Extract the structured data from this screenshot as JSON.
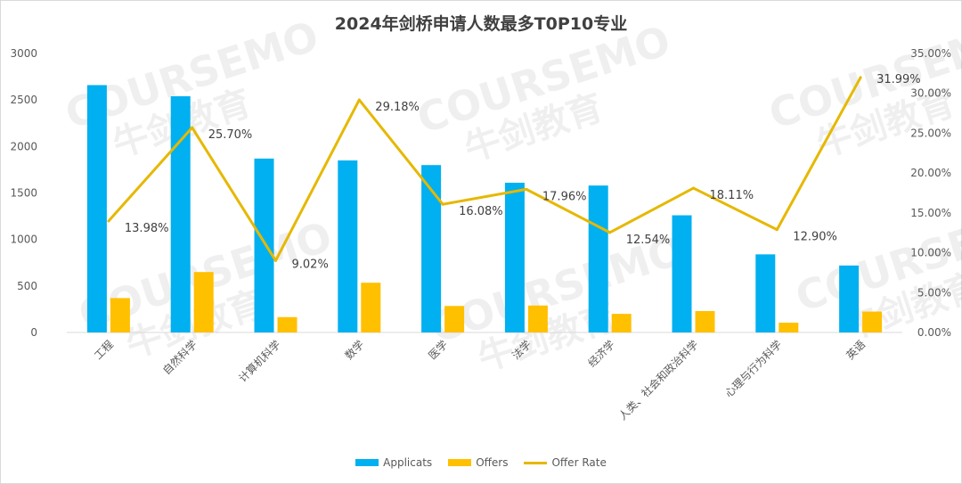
{
  "chart_data": {
    "type": "bar",
    "title": "2024年剑桥申请人数最多T0P10专业",
    "categories": [
      "工程",
      "自然科学",
      "计算机科学",
      "数学",
      "医学",
      "法学",
      "经济学",
      "人类、社会和政治科学",
      "心理与行为科学",
      "英语"
    ],
    "series": [
      {
        "name": "Applicats",
        "type": "bar",
        "axis": "left",
        "color": "#00B0F0",
        "values": [
          2660,
          2540,
          1870,
          1850,
          1800,
          1610,
          1580,
          1260,
          840,
          720
        ]
      },
      {
        "name": "Offers",
        "type": "bar",
        "axis": "left",
        "color": "#FFC000",
        "values": [
          370,
          650,
          165,
          535,
          285,
          290,
          200,
          230,
          105,
          225
        ]
      },
      {
        "name": "Offer Rate",
        "type": "line",
        "axis": "right",
        "color": "#E6B800",
        "values": [
          13.98,
          25.7,
          9.02,
          29.18,
          16.08,
          17.96,
          12.54,
          18.11,
          12.9,
          31.99
        ],
        "labels": [
          "13.98%",
          "25.70%",
          "9.02%",
          "29.18%",
          "16.08%",
          "17.96%",
          "12.54%",
          "18.11%",
          "12.90%",
          "31.99%"
        ]
      }
    ],
    "ylim": [
      0,
      3000
    ],
    "yticks": [
      "0",
      "500",
      "1000",
      "1500",
      "2000",
      "2500",
      "3000"
    ],
    "y2lim": [
      0,
      35
    ],
    "y2ticks": [
      "0.00%",
      "5.00%",
      "10.00%",
      "15.00%",
      "20.00%",
      "25.00%",
      "30.00%",
      "35.00%"
    ],
    "legend_position": "bottom",
    "grid": false
  },
  "watermark": {
    "brand": "COURSEMO",
    "cn": "牛剑教育"
  }
}
